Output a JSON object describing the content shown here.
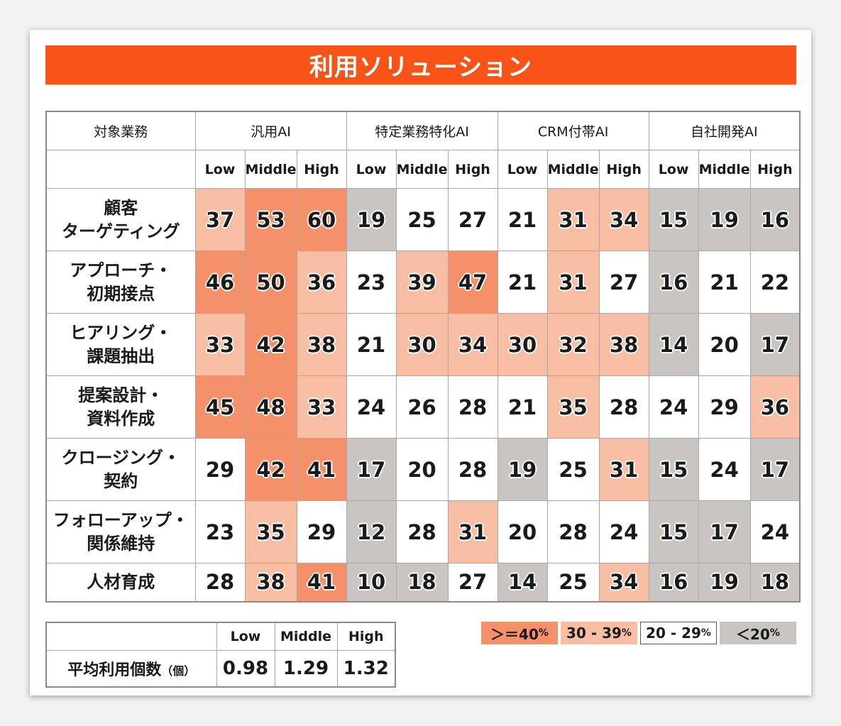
{
  "title": "利用ソリューション",
  "colors": {
    "title_bar": "#fa5318",
    "ge40": "#f5916a",
    "r30_39": "#f8bea4",
    "r20_29": "#ffffff",
    "lt20": "#c9c5c3"
  },
  "table": {
    "corner_label": "対象業務",
    "groups": [
      "汎用AI",
      "特定業務特化AI",
      "CRM付帯AI",
      "自社開発AI"
    ],
    "levels": [
      "Low",
      "Middle",
      "High"
    ]
  },
  "legend": {
    "ge40": "＞＝40",
    "r30_39": "30 - 39",
    "r20_29": "20 - 29",
    "lt20": "＜20",
    "pct": "%"
  },
  "average": {
    "label": "平均利用個数",
    "unit": "（個）",
    "headers": [
      "Low",
      "Middle",
      "High"
    ],
    "values": [
      "0.98",
      "1.29",
      "1.32"
    ]
  },
  "chart_data": {
    "type": "heatmap",
    "title": "利用ソリューション",
    "row_header": "対象業務",
    "rows": [
      "顧客\nターゲティング",
      "アプローチ・\n初期接点",
      "ヒアリング・\n課題抽出",
      "提案設計・\n資料作成",
      "クロージング・\n契約",
      "フォローアップ・\n関係維持",
      "人材育成"
    ],
    "column_groups": [
      "汎用AI",
      "特定業務特化AI",
      "CRM付帯AI",
      "自社開発AI"
    ],
    "column_levels": [
      "Low",
      "Middle",
      "High"
    ],
    "values": [
      [
        37,
        53,
        60,
        19,
        25,
        27,
        21,
        31,
        34,
        15,
        19,
        16
      ],
      [
        46,
        50,
        36,
        23,
        39,
        47,
        21,
        31,
        27,
        16,
        21,
        22
      ],
      [
        33,
        42,
        38,
        21,
        30,
        34,
        30,
        32,
        38,
        14,
        20,
        17
      ],
      [
        45,
        48,
        33,
        24,
        26,
        28,
        21,
        35,
        28,
        24,
        29,
        36
      ],
      [
        29,
        42,
        41,
        17,
        20,
        28,
        19,
        25,
        31,
        15,
        24,
        17
      ],
      [
        23,
        35,
        29,
        12,
        28,
        31,
        20,
        28,
        24,
        15,
        17,
        24
      ],
      [
        28,
        38,
        41,
        10,
        18,
        27,
        14,
        25,
        34,
        16,
        19,
        18
      ]
    ],
    "color_bins": [
      "＞＝40%",
      "30 - 39%",
      "20 - 29%",
      "＜20%"
    ]
  }
}
